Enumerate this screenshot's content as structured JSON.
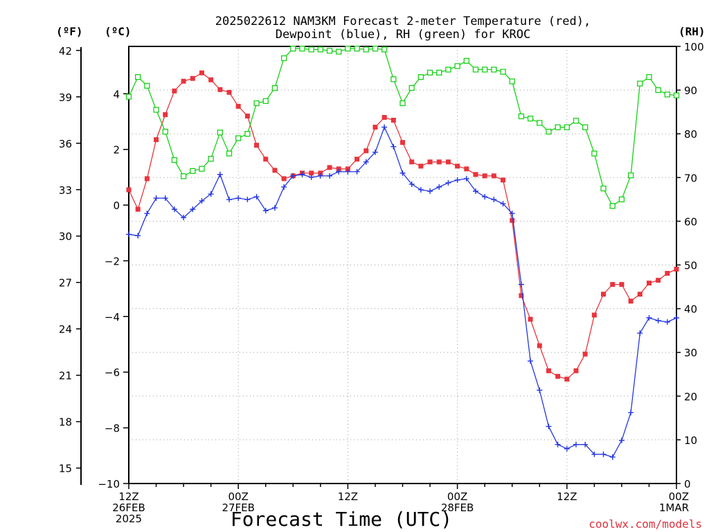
{
  "title_line1": "2025022612 NAM3KM Forecast 2-meter Temperature (red),",
  "title_line2": "Dewpoint (blue), RH (green) for KROC",
  "unit_f": "(ºF)",
  "unit_c": "(ºC)",
  "unit_rh": "(RH)",
  "xlabel": "Forecast Time (UTC)",
  "credit": "coolwx.com/models",
  "x_ticks": [
    {
      "line1": "12Z",
      "line2": "26FEB",
      "line3": "2025",
      "hour": 0
    },
    {
      "line1": "00Z",
      "line2": "27FEB",
      "line3": "",
      "hour": 12
    },
    {
      "line1": "12Z",
      "line2": "",
      "line3": "",
      "hour": 24
    },
    {
      "line1": "00Z",
      "line2": "28FEB",
      "line3": "",
      "hour": 36
    },
    {
      "line1": "12Z",
      "line2": "",
      "line3": "",
      "hour": 48
    },
    {
      "line1": "00Z",
      "line2": "1MAR",
      "line3": "",
      "hour": 60
    }
  ],
  "colors": {
    "temperature": "#e8343c",
    "dewpoint": "#2436e0",
    "rh": "#18d018",
    "grid": "#9a9a9a",
    "credit": "#e0303c"
  },
  "chart_data": {
    "type": "line",
    "x_unit": "forecast hour from 2025-02-26 12Z",
    "x": [
      0,
      1,
      2,
      3,
      4,
      5,
      6,
      7,
      8,
      9,
      10,
      11,
      12,
      13,
      14,
      15,
      16,
      17,
      18,
      19,
      20,
      21,
      22,
      23,
      24,
      25,
      26,
      27,
      28,
      29,
      30,
      31,
      32,
      33,
      34,
      35,
      36,
      37,
      38,
      39,
      40,
      41,
      42,
      43,
      44,
      45,
      46,
      47,
      48,
      49,
      50,
      51,
      52,
      53,
      54,
      55,
      56,
      57,
      58,
      59,
      60
    ],
    "xlim": [
      0,
      60
    ],
    "y_left_celsius": {
      "ticks": [
        -10,
        -8,
        -6,
        -4,
        -2,
        0,
        2,
        4
      ],
      "ylim": [
        -10,
        5.7
      ]
    },
    "y_left_fahrenheit": {
      "ticks": [
        15,
        18,
        21,
        24,
        27,
        30,
        33,
        36,
        39,
        42
      ]
    },
    "y_right_rh": {
      "ticks": [
        0,
        10,
        20,
        30,
        40,
        50,
        60,
        70,
        80,
        90,
        100
      ],
      "ylim": [
        0,
        100
      ]
    },
    "grid": true,
    "series": [
      {
        "name": "Temperature",
        "axis": "C",
        "marker": "filled-square",
        "color": "#e8343c",
        "values": [
          0.55,
          -0.15,
          0.95,
          2.35,
          3.25,
          4.1,
          4.45,
          4.55,
          4.75,
          4.5,
          4.15,
          4.05,
          3.55,
          3.2,
          2.15,
          1.65,
          1.25,
          0.95,
          1.05,
          1.15,
          1.15,
          1.15,
          1.35,
          1.3,
          1.3,
          1.65,
          1.95,
          2.8,
          3.15,
          3.05,
          2.25,
          1.55,
          1.4,
          1.55,
          1.55,
          1.55,
          1.4,
          1.3,
          1.1,
          1.05,
          1.05,
          0.9,
          -0.55,
          -3.25,
          -4.1,
          -5.05,
          -5.95,
          -6.15,
          -6.25,
          -5.95,
          -5.35,
          -3.95,
          -3.2,
          -2.85,
          -2.85,
          -3.45,
          -3.2,
          -2.8,
          -2.7,
          -2.45,
          -2.3
        ]
      },
      {
        "name": "Dewpoint",
        "axis": "C",
        "marker": "plus",
        "color": "#2436e0",
        "values": [
          -1.05,
          -1.1,
          -0.3,
          0.25,
          0.25,
          -0.15,
          -0.45,
          -0.15,
          0.15,
          0.4,
          1.1,
          0.2,
          0.25,
          0.2,
          0.3,
          -0.2,
          -0.1,
          0.65,
          1.05,
          1.1,
          1.0,
          1.05,
          1.05,
          1.2,
          1.2,
          1.2,
          1.55,
          1.9,
          2.8,
          2.1,
          1.15,
          0.75,
          0.55,
          0.5,
          0.65,
          0.8,
          0.9,
          0.95,
          0.5,
          0.3,
          0.2,
          0.05,
          -0.3,
          -2.85,
          -5.6,
          -6.65,
          -7.95,
          -8.6,
          -8.75,
          -8.6,
          -8.6,
          -8.95,
          -8.95,
          -9.05,
          -8.45,
          -7.45,
          -4.6,
          -4.05,
          -4.15,
          -4.2,
          -4.05
        ]
      },
      {
        "name": "RH",
        "axis": "RH",
        "marker": "open-square",
        "color": "#18d018",
        "values": [
          88.5,
          93.0,
          91.0,
          85.5,
          80.5,
          74.0,
          70.3,
          71.5,
          72.0,
          74.3,
          80.3,
          75.5,
          79.0,
          80.0,
          87.0,
          87.5,
          90.5,
          97.3,
          99.5,
          99.5,
          99.3,
          99.3,
          99.0,
          98.8,
          99.5,
          99.5,
          99.3,
          99.5,
          99.3,
          92.5,
          87.0,
          90.5,
          93.0,
          94.0,
          94.0,
          94.7,
          95.5,
          96.7,
          94.7,
          94.7,
          94.7,
          94.2,
          92.0,
          84.0,
          83.5,
          82.5,
          80.5,
          81.5,
          81.5,
          83.0,
          81.5,
          75.5,
          67.5,
          63.5,
          65.0,
          70.5,
          91.5,
          93.0,
          90.0,
          89.0,
          88.8
        ]
      }
    ]
  }
}
